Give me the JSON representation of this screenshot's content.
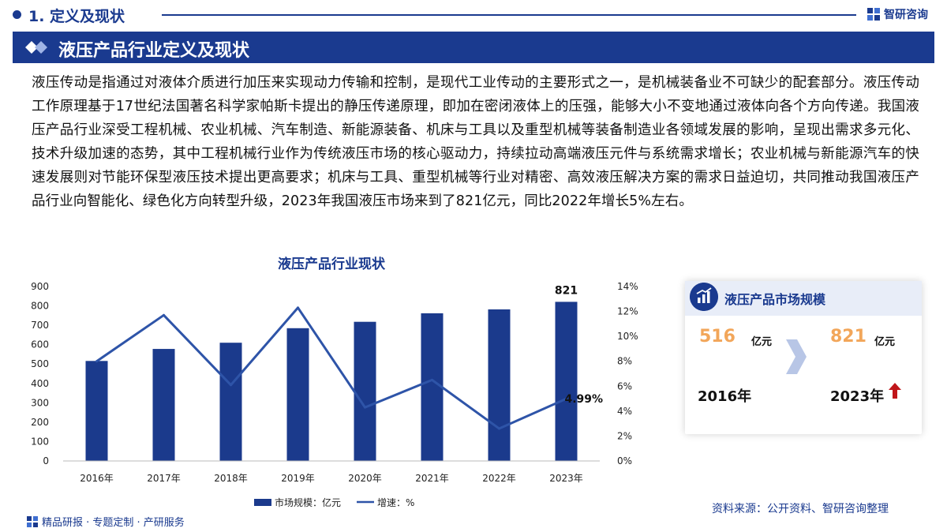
{
  "header": {
    "section_title": "1. 定义及现状",
    "brand": "智研咨询"
  },
  "banner": {
    "title": "液压产品行业定义及现状"
  },
  "intro": {
    "text": "液压传动是指通过对液体介质进行加压来实现动力传输和控制，是现代工业传动的主要形式之一，是机械装备业不可缺少的配套部分。液压传动工作原理基于17世纪法国著名科学家帕斯卡提出的静压传递原理，即加在密闭液体上的压强，能够大小不变地通过液体向各个方向传递。我国液压产品行业深受工程机械、农业机械、汽车制造、新能源装备、机床与工具以及重型机械等装备制造业各领域发展的影响，呈现出需求多元化、技术升级加速的态势，其中工程机械行业作为传统液压市场的核心驱动力，持续拉动高端液压元件与系统需求增长；农业机械与新能源汽车的快速发展则对节能环保型液压技术提出更高要求；机床与工具、重型机械等行业对精密、高效液压解决方案的需求日益迫切，共同推动我国液压产品行业向智能化、绿色化方向转型升级，2023年我国液压市场来到了821亿元，同比2022年增长5%左右。"
  },
  "chart_data": {
    "type": "bar",
    "title": "液压产品行业现状",
    "categories": [
      "2016年",
      "2017年",
      "2018年",
      "2019年",
      "2020年",
      "2021年",
      "2022年",
      "2023年"
    ],
    "series": [
      {
        "name": "市场规模：亿元",
        "type": "bar",
        "axis": "left",
        "values": [
          516,
          578,
          610,
          685,
          718,
          762,
          782,
          821
        ]
      },
      {
        "name": "增速：%",
        "type": "line",
        "axis": "right",
        "values": [
          8.0,
          11.7,
          6.1,
          12.3,
          4.3,
          6.5,
          2.6,
          4.99
        ]
      }
    ],
    "ylim_left": [
      0,
      900
    ],
    "yticks_left": [
      "0",
      "100",
      "200",
      "300",
      "400",
      "500",
      "600",
      "700",
      "800",
      "900"
    ],
    "ylim_right": [
      0,
      14
    ],
    "yticks_right": [
      "0%",
      "2%",
      "4%",
      "6%",
      "8%",
      "10%",
      "12%",
      "14%"
    ],
    "data_labels": {
      "last_bar": "821",
      "last_line": "4.99%"
    },
    "legend": [
      "市场规模：亿元",
      "增速：%"
    ],
    "legend_position": "bottom",
    "colors": {
      "bar": "#1b3a8c",
      "line": "#2e54a8"
    }
  },
  "card": {
    "title": "液压产品市场规模",
    "start_value": "516",
    "start_unit": "亿元",
    "end_value": "821",
    "end_unit": "亿元",
    "start_year": "2016年",
    "end_year": "2023年"
  },
  "footer": {
    "left": "精品研报 · 专题定制 · 产研服务",
    "source": "资料来源：公开资料、智研咨询整理"
  },
  "colors": {
    "primary": "#1a3a8f",
    "accent": "#f2a65a",
    "up_arrow": "#c0161a"
  }
}
